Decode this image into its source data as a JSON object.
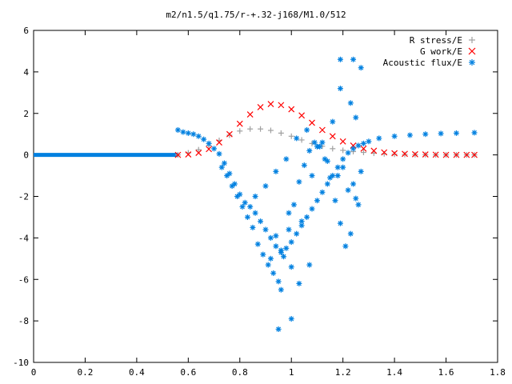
{
  "chart_data": {
    "type": "scatter",
    "title": "m2/n1.5/q1.75/r-+.32-j168/M1.0/512",
    "xlabel": "",
    "ylabel": "",
    "xlim": [
      0,
      1.8
    ],
    "ylim": [
      -10,
      6
    ],
    "x_ticks": [
      "0",
      "0.2",
      "0.4",
      "0.6",
      "0.8",
      "1",
      "1.2",
      "1.4",
      "1.6",
      "1.8"
    ],
    "y_ticks": [
      "6",
      "4",
      "2",
      "0",
      "-2",
      "-4",
      "-6",
      "-8",
      "-10"
    ],
    "legend_position": "top-right",
    "series": [
      {
        "name": "R stress/E",
        "marker": "+",
        "color": "#a0a0a0",
        "x": [
          0.56,
          0.6,
          0.64,
          0.68,
          0.72,
          0.76,
          0.8,
          0.84,
          0.88,
          0.92,
          0.96,
          1.0,
          1.04,
          1.08,
          1.12,
          1.16,
          1.2,
          1.24,
          1.28,
          1.32,
          1.36,
          1.4,
          1.44,
          1.48,
          1.52,
          1.56,
          1.6,
          1.64,
          1.68,
          1.71
        ],
        "y": [
          0.0,
          0.1,
          0.25,
          0.45,
          0.7,
          0.95,
          1.15,
          1.25,
          1.25,
          1.18,
          1.05,
          0.9,
          0.72,
          0.55,
          0.42,
          0.3,
          0.22,
          0.16,
          0.12,
          0.08,
          0.05,
          0.03,
          0.02,
          0.01,
          0.01,
          0.0,
          0.0,
          0.0,
          0.0,
          0.0
        ]
      },
      {
        "name": "G work/E",
        "marker": "x",
        "color": "#ff0000",
        "x": [
          0.56,
          0.6,
          0.64,
          0.68,
          0.72,
          0.76,
          0.8,
          0.84,
          0.88,
          0.92,
          0.96,
          1.0,
          1.04,
          1.08,
          1.12,
          1.16,
          1.2,
          1.24,
          1.28,
          1.32,
          1.36,
          1.4,
          1.44,
          1.48,
          1.52,
          1.56,
          1.6,
          1.64,
          1.68,
          1.71
        ],
        "y": [
          0.0,
          0.02,
          0.1,
          0.28,
          0.6,
          1.0,
          1.5,
          1.95,
          2.3,
          2.45,
          2.4,
          2.2,
          1.9,
          1.55,
          1.2,
          0.9,
          0.65,
          0.45,
          0.3,
          0.2,
          0.12,
          0.08,
          0.05,
          0.03,
          0.02,
          0.01,
          0.0,
          0.0,
          0.0,
          0.0
        ]
      },
      {
        "name": "Acoustic flux/E",
        "marker": "*",
        "color": "#0080e0",
        "x": [
          0.56,
          0.58,
          0.6,
          0.62,
          0.64,
          0.66,
          0.68,
          0.7,
          0.72,
          0.74,
          0.76,
          0.78,
          0.8,
          0.82,
          0.84,
          0.86,
          0.88,
          0.9,
          0.92,
          0.94,
          0.96,
          0.98,
          1.0,
          1.02,
          1.04,
          1.06,
          1.08,
          1.1,
          1.12,
          1.14,
          1.16,
          1.18,
          1.2,
          1.22,
          1.24,
          1.26,
          1.28,
          1.3,
          1.34,
          1.4,
          1.46,
          1.52,
          1.58,
          1.64,
          1.71,
          0.73,
          0.75,
          0.77,
          0.79,
          0.81,
          0.83,
          0.85,
          0.87,
          0.89,
          0.91,
          0.93,
          0.95,
          0.97,
          0.99,
          1.01,
          1.03,
          1.05,
          1.07,
          1.09,
          1.11,
          1.13,
          1.15,
          1.17,
          1.19,
          1.21,
          1.23,
          1.25,
          1.27,
          0.86,
          0.9,
          0.94,
          0.98,
          1.02,
          1.06,
          1.1,
          1.14,
          1.18,
          1.22,
          1.26,
          0.92,
          0.96,
          1.0,
          1.04,
          1.08,
          1.12,
          1.16,
          1.2,
          1.24,
          0.95,
          1.0,
          1.19,
          1.24,
          1.27,
          1.19,
          1.23,
          1.25,
          0.96,
          0.94,
          0.99,
          1.03,
          1.07
        ],
        "y": [
          1.2,
          1.1,
          1.05,
          1.0,
          0.9,
          0.75,
          0.55,
          0.3,
          0.05,
          -0.4,
          -0.9,
          -1.4,
          -1.9,
          -2.3,
          -2.5,
          -2.8,
          -3.2,
          -3.6,
          -4.0,
          -4.4,
          -4.7,
          -4.5,
          -4.2,
          -3.8,
          -3.4,
          -3.0,
          -2.6,
          -2.2,
          -1.8,
          -1.4,
          -1.0,
          -0.6,
          -0.2,
          0.1,
          0.3,
          0.45,
          0.55,
          0.65,
          0.8,
          0.9,
          0.95,
          1.0,
          1.03,
          1.05,
          1.07,
          -0.6,
          -1.0,
          -1.5,
          -2.0,
          -2.5,
          -3.0,
          -3.5,
          -4.3,
          -4.8,
          -5.3,
          -5.7,
          -6.1,
          -4.9,
          -3.6,
          -2.4,
          -1.3,
          -0.5,
          0.2,
          0.6,
          0.4,
          -0.2,
          -1.1,
          -2.2,
          -3.3,
          -4.4,
          -3.8,
          -2.1,
          -0.8,
          -2.0,
          -1.5,
          -0.8,
          -0.2,
          0.8,
          1.2,
          0.4,
          -0.3,
          -1.0,
          -1.7,
          -2.4,
          -5.0,
          -6.5,
          -5.4,
          -3.2,
          -1.0,
          0.6,
          1.6,
          -0.6,
          -1.4,
          -8.4,
          -7.9,
          4.6,
          4.6,
          4.2,
          3.2,
          2.5,
          1.8,
          -4.6,
          -3.9,
          -2.8,
          -6.2,
          -5.3
        ]
      }
    ]
  }
}
